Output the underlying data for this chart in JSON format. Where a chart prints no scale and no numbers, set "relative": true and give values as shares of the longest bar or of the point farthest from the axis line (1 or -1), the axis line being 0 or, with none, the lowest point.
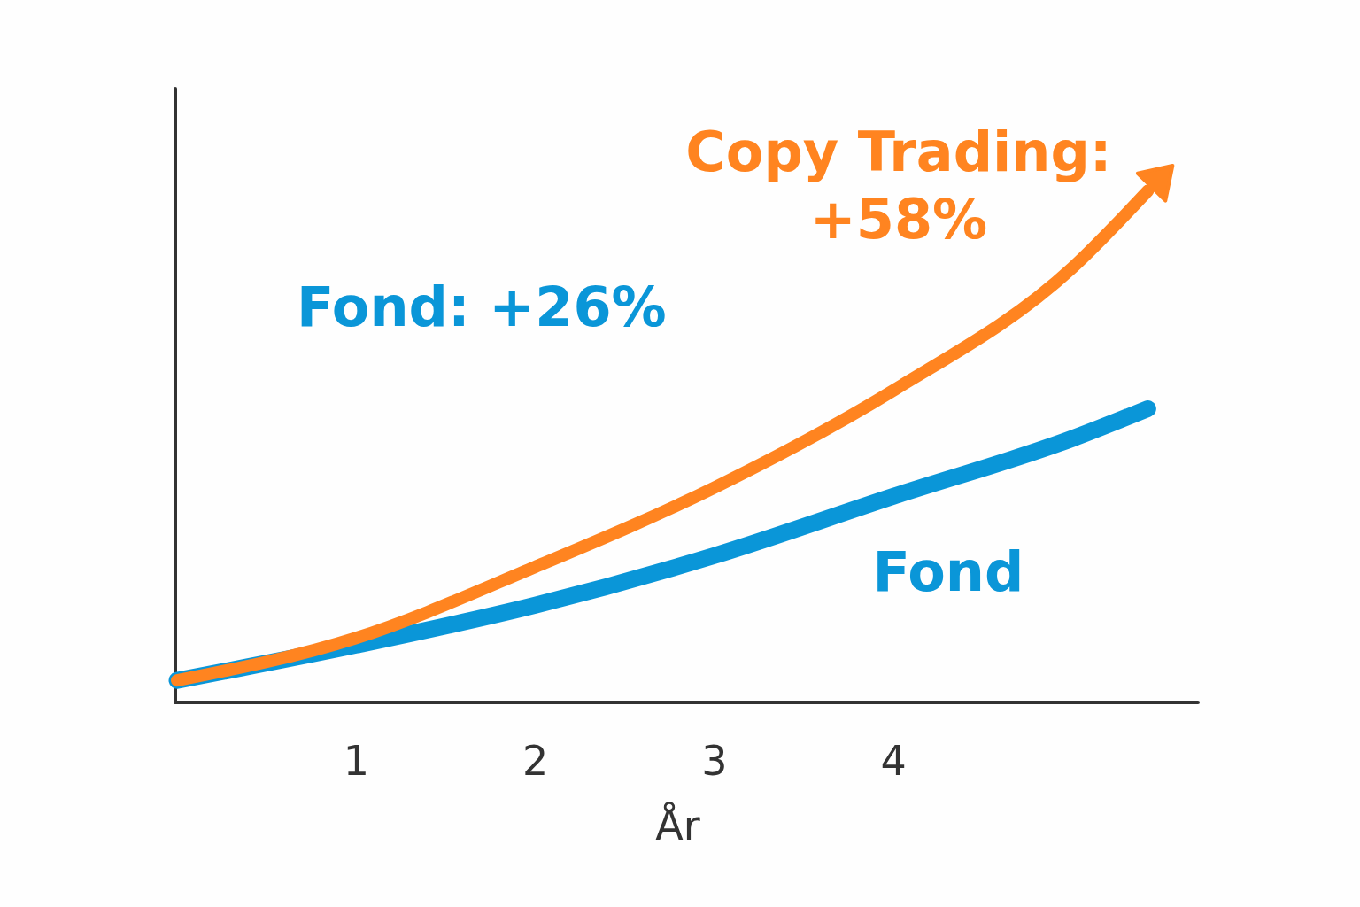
{
  "chart_data": {
    "type": "line",
    "relative": true,
    "xlabel": "År",
    "xlim": [
      0,
      5.7
    ],
    "xticks": [
      1,
      2,
      3,
      4
    ],
    "grid": false,
    "legend": false,
    "marker": "none",
    "line_style": "solid",
    "annotations": [
      "Fond: +26%",
      "Copy Trading: +58%"
    ],
    "series": [
      {
        "name": "Fond",
        "color": "#0a96d8",
        "x": [
          0,
          1,
          2,
          3,
          4,
          5,
          5.42
        ],
        "values": [
          0.043,
          0.112,
          0.19,
          0.287,
          0.403,
          0.516,
          0.574
        ]
      },
      {
        "color": "#ff8420",
        "x": [
          0,
          1,
          2,
          3,
          4,
          5,
          5.42
        ],
        "values": [
          0.043,
          0.126,
          0.265,
          0.42,
          0.61,
          0.85,
          1
        ]
      }
    ]
  }
}
